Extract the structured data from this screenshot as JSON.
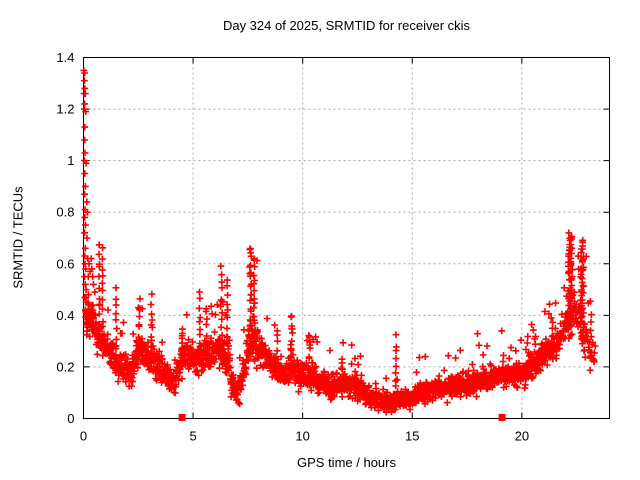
{
  "chart_data": {
    "type": "scatter",
    "title": "Day 324 of 2025, SRMTID for receiver ckis",
    "xlabel": "GPS time / hours",
    "ylabel": "SRMTID / TECUs",
    "xlim": [
      0,
      24
    ],
    "ylim": [
      0,
      1.4
    ],
    "xticks": [
      0,
      5,
      10,
      15,
      20
    ],
    "xtick_labels": [
      "0",
      "5",
      "10",
      "15",
      "20"
    ],
    "yticks": [
      0,
      0.2,
      0.4,
      0.6,
      0.8,
      1.0,
      1.2,
      1.4
    ],
    "ytick_labels": [
      "0",
      "0.2",
      "0.4",
      "0.6",
      "0.8",
      "1",
      "1.2",
      "1.4"
    ],
    "grid": {
      "on": true,
      "color": "#a8a8a8",
      "dash": "2,3"
    },
    "border_color": "#000000",
    "marker": {
      "shape": "plus",
      "color": "#ff0000",
      "half_arm": 3.4,
      "stroke_width": 1.6
    },
    "event_markers": {
      "shape": "filled-square",
      "color": "#ff0000",
      "size": 7,
      "points": [
        [
          4.5,
          0.004
        ],
        [
          19.1,
          0.004
        ]
      ]
    },
    "seed": 1337,
    "explicit_points": [
      [
        0.02,
        1.35
      ],
      [
        0.05,
        1.34
      ],
      [
        0.04,
        1.31
      ],
      [
        0.06,
        1.28
      ],
      [
        0.03,
        1.26
      ],
      [
        0.08,
        1.26
      ],
      [
        0.05,
        1.22
      ],
      [
        0.04,
        1.2
      ],
      [
        0.1,
        1.19
      ],
      [
        0.06,
        1.13
      ],
      [
        0.05,
        1.08
      ],
      [
        0.07,
        1.03
      ],
      [
        0.04,
        1.0
      ],
      [
        0.12,
        0.99
      ],
      [
        0.06,
        0.95
      ],
      [
        0.08,
        0.9
      ],
      [
        0.05,
        0.87
      ],
      [
        0.15,
        0.84
      ],
      [
        0.07,
        0.81
      ],
      [
        0.18,
        0.8
      ],
      [
        0.06,
        0.78
      ],
      [
        0.09,
        0.75
      ],
      [
        0.05,
        0.72
      ],
      [
        0.16,
        0.7
      ],
      [
        0.08,
        0.66
      ],
      [
        0.06,
        0.63
      ],
      [
        0.19,
        0.62
      ],
      [
        0.07,
        0.6
      ],
      [
        0.1,
        0.58
      ],
      [
        0.05,
        0.55
      ],
      [
        0.22,
        0.55
      ],
      [
        0.08,
        0.52
      ],
      [
        0.12,
        0.5
      ],
      [
        0.06,
        0.47
      ],
      [
        0.25,
        0.6
      ],
      [
        0.3,
        0.57
      ],
      [
        0.35,
        0.62
      ],
      [
        0.38,
        0.58
      ],
      [
        0.42,
        0.55
      ],
      [
        0.45,
        0.52
      ]
    ],
    "spikes": [
      [
        0.72,
        0.05,
        0.3,
        0.68,
        12
      ],
      [
        0.88,
        0.05,
        0.35,
        0.66,
        10
      ],
      [
        1.5,
        0.06,
        0.28,
        0.5,
        9
      ],
      [
        2.55,
        0.07,
        0.28,
        0.46,
        9
      ],
      [
        3.1,
        0.07,
        0.22,
        0.47,
        10
      ],
      [
        4.5,
        0.06,
        0.25,
        0.36,
        7
      ],
      [
        5.3,
        0.06,
        0.25,
        0.48,
        10
      ],
      [
        5.62,
        0.06,
        0.25,
        0.44,
        8
      ],
      [
        6.3,
        0.07,
        0.28,
        0.58,
        12
      ],
      [
        6.55,
        0.06,
        0.3,
        0.55,
        9
      ],
      [
        7.62,
        0.08,
        0.25,
        0.66,
        28
      ],
      [
        7.8,
        0.06,
        0.3,
        0.62,
        16
      ],
      [
        8.85,
        0.05,
        0.2,
        0.35,
        6
      ],
      [
        9.5,
        0.09,
        0.16,
        0.4,
        16
      ],
      [
        10.3,
        0.08,
        0.16,
        0.33,
        9
      ],
      [
        11.8,
        0.05,
        0.12,
        0.24,
        6
      ],
      [
        12.4,
        0.05,
        0.12,
        0.22,
        5
      ],
      [
        14.25,
        0.06,
        0.1,
        0.32,
        9
      ],
      [
        19.15,
        0.05,
        0.15,
        0.24,
        5
      ],
      [
        20.6,
        0.05,
        0.2,
        0.33,
        6
      ],
      [
        21.4,
        0.05,
        0.24,
        0.36,
        6
      ],
      [
        22.2,
        0.18,
        0.33,
        0.72,
        60
      ],
      [
        22.75,
        0.13,
        0.3,
        0.7,
        48
      ],
      [
        23.15,
        0.06,
        0.2,
        0.45,
        8
      ]
    ],
    "band_segments": [
      [
        0.08,
        0.35,
        0.38,
        0.4,
        0.08,
        130
      ],
      [
        0.35,
        0.7,
        0.4,
        0.32,
        0.07,
        110
      ],
      [
        0.7,
        1.0,
        0.32,
        0.28,
        0.06,
        100
      ],
      [
        1.0,
        1.45,
        0.27,
        0.24,
        0.06,
        95
      ],
      [
        1.45,
        2.2,
        0.23,
        0.18,
        0.06,
        95
      ],
      [
        2.2,
        2.6,
        0.2,
        0.28,
        0.07,
        95
      ],
      [
        2.6,
        3.1,
        0.28,
        0.22,
        0.07,
        95
      ],
      [
        3.1,
        3.6,
        0.22,
        0.2,
        0.06,
        95
      ],
      [
        3.6,
        4.2,
        0.2,
        0.13,
        0.05,
        95
      ],
      [
        4.2,
        4.7,
        0.16,
        0.27,
        0.06,
        95
      ],
      [
        4.7,
        5.3,
        0.26,
        0.22,
        0.06,
        95
      ],
      [
        5.3,
        6.1,
        0.24,
        0.27,
        0.06,
        95
      ],
      [
        6.1,
        6.7,
        0.27,
        0.22,
        0.07,
        95
      ],
      [
        6.7,
        7.15,
        0.14,
        0.11,
        0.05,
        95
      ],
      [
        7.15,
        7.55,
        0.13,
        0.28,
        0.07,
        95
      ],
      [
        7.55,
        7.95,
        0.33,
        0.3,
        0.1,
        110
      ],
      [
        7.95,
        8.7,
        0.27,
        0.21,
        0.06,
        95
      ],
      [
        8.7,
        9.35,
        0.19,
        0.16,
        0.05,
        95
      ],
      [
        9.35,
        9.75,
        0.2,
        0.18,
        0.06,
        95
      ],
      [
        9.75,
        10.6,
        0.17,
        0.16,
        0.055,
        95
      ],
      [
        10.6,
        11.4,
        0.15,
        0.13,
        0.05,
        95
      ],
      [
        11.4,
        12.1,
        0.13,
        0.14,
        0.05,
        95
      ],
      [
        12.1,
        12.8,
        0.13,
        0.11,
        0.05,
        95
      ],
      [
        12.8,
        13.5,
        0.1,
        0.07,
        0.04,
        95
      ],
      [
        13.5,
        14.2,
        0.06,
        0.06,
        0.035,
        95
      ],
      [
        14.2,
        15.2,
        0.07,
        0.08,
        0.04,
        95
      ],
      [
        15.2,
        16.2,
        0.1,
        0.12,
        0.045,
        95
      ],
      [
        16.2,
        17.2,
        0.12,
        0.13,
        0.05,
        95
      ],
      [
        17.2,
        18.2,
        0.13,
        0.15,
        0.05,
        95
      ],
      [
        18.2,
        19.2,
        0.15,
        0.17,
        0.05,
        95
      ],
      [
        19.2,
        20.2,
        0.17,
        0.17,
        0.05,
        95
      ],
      [
        20.2,
        20.9,
        0.18,
        0.24,
        0.055,
        95
      ],
      [
        20.9,
        21.6,
        0.25,
        0.29,
        0.06,
        95
      ],
      [
        21.6,
        22.0,
        0.3,
        0.36,
        0.07,
        95
      ],
      [
        22.0,
        22.5,
        0.4,
        0.42,
        0.09,
        70
      ],
      [
        22.5,
        23.0,
        0.38,
        0.3,
        0.09,
        55
      ],
      [
        23.0,
        23.35,
        0.28,
        0.22,
        0.06,
        45
      ]
    ]
  }
}
